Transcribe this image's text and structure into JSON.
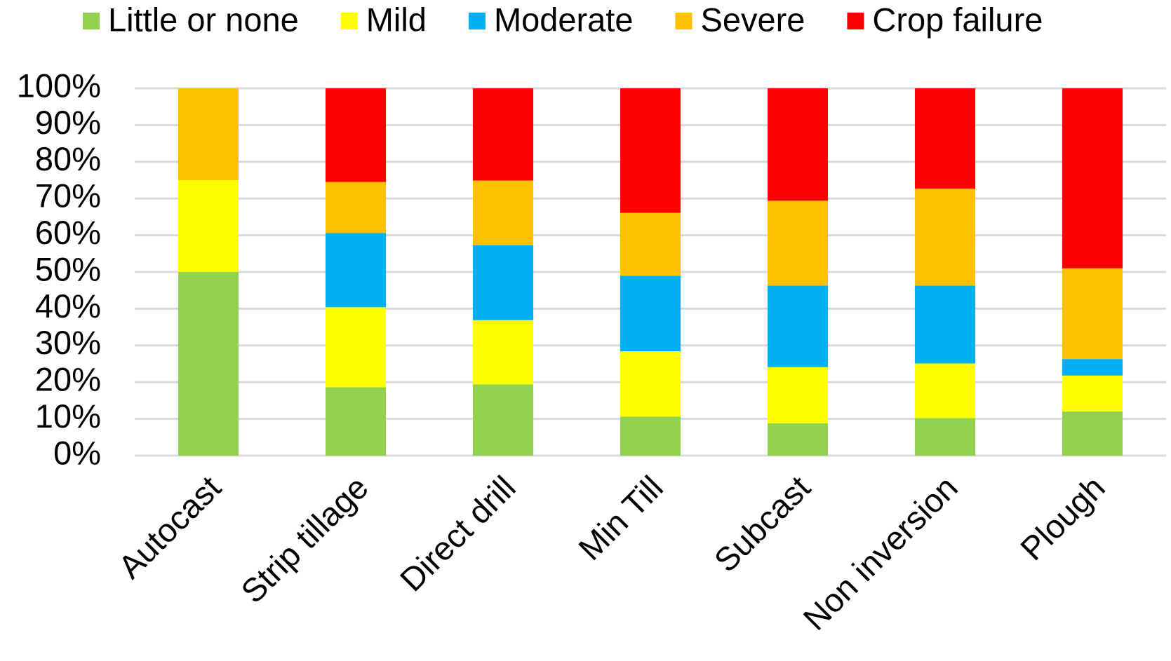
{
  "chart_data": {
    "type": "stacked_bar",
    "categories": [
      "Autocast",
      "Strip tillage",
      "Direct drill",
      "Min Till",
      "Subcast",
      "Non inversion",
      "Plough"
    ],
    "series": [
      {
        "name": "Little or none",
        "color": "#92d050",
        "values": [
          50,
          18.6,
          19.4,
          10.6,
          8.8,
          10.2,
          12.0
        ]
      },
      {
        "name": "Mild",
        "color": "#ffff00",
        "values": [
          25,
          21.8,
          17.5,
          17.8,
          15.3,
          14.9,
          9.8
        ]
      },
      {
        "name": "Moderate",
        "color": "#00b0f0",
        "values": [
          0,
          20.2,
          20.4,
          20.6,
          22.2,
          21.2,
          4.5
        ]
      },
      {
        "name": "Severe",
        "color": "#ffc000",
        "values": [
          25,
          13.9,
          17.6,
          17.1,
          23.1,
          26.4,
          24.7
        ]
      },
      {
        "name": "Crop failure",
        "color": "#ff0000",
        "values": [
          0,
          25.5,
          25.1,
          33.9,
          30.6,
          27.3,
          49.0
        ]
      }
    ],
    "ylim": [
      0,
      100
    ],
    "yticks": [
      {
        "value": 0,
        "label": "0%"
      },
      {
        "value": 10,
        "label": "10%"
      },
      {
        "value": 20,
        "label": "20%"
      },
      {
        "value": 30,
        "label": "30%"
      },
      {
        "value": 40,
        "label": "40%"
      },
      {
        "value": 50,
        "label": "50%"
      },
      {
        "value": 60,
        "label": "60%"
      },
      {
        "value": 70,
        "label": "70%"
      },
      {
        "value": 80,
        "label": "80%"
      },
      {
        "value": 90,
        "label": "90%"
      },
      {
        "value": 100,
        "label": "100%"
      }
    ],
    "grid": true,
    "legend": "top"
  }
}
